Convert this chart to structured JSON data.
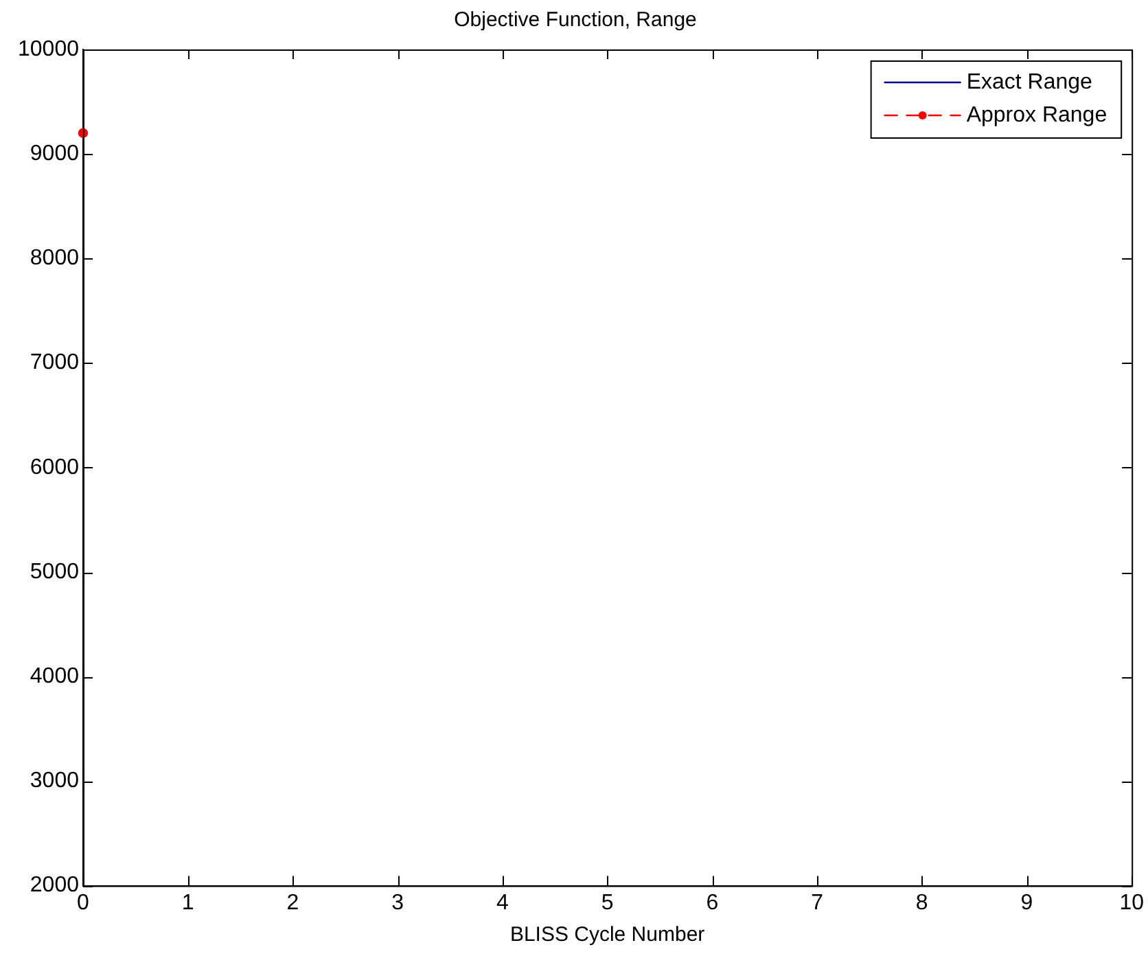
{
  "chart_data": {
    "type": "line",
    "title": "Objective Function, Range",
    "xlabel": "BLISS Cycle Number",
    "x": [
      0
    ],
    "series": [
      {
        "name": "Exact Range",
        "color": "#00008b",
        "values": [
          null
        ],
        "marker": "none",
        "line_style": "solid"
      },
      {
        "name": "Approx Range",
        "color": "#ff0000",
        "values": [
          9200
        ],
        "marker": "circle",
        "line_style": "dashed"
      }
    ],
    "xlim": [
      0,
      10
    ],
    "xticks": [
      0,
      1,
      2,
      3,
      4,
      5,
      6,
      7,
      8,
      9,
      10
    ],
    "ylim": [
      2000,
      10000
    ],
    "yticks": [
      2000,
      3000,
      4000,
      5000,
      6000,
      7000,
      8000,
      9000,
      10000
    ],
    "grid": false,
    "legend": "top right"
  }
}
